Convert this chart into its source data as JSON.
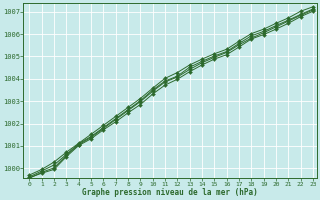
{
  "title": "",
  "xlabel": "Graphe pression niveau de la mer (hPa)",
  "ylabel": "",
  "background_color": "#c8eaea",
  "grid_color": "#ffffff",
  "line_color": "#2d6a2d",
  "xlim": [
    -0.5,
    23.3
  ],
  "ylim": [
    999.55,
    1007.4
  ],
  "yticks": [
    1000,
    1001,
    1002,
    1003,
    1004,
    1005,
    1006,
    1007
  ],
  "xticks": [
    0,
    1,
    2,
    3,
    4,
    5,
    6,
    7,
    8,
    9,
    10,
    11,
    12,
    13,
    14,
    15,
    16,
    17,
    18,
    19,
    20,
    21,
    22,
    23
  ],
  "series": [
    [
      999.62,
      999.88,
      1000.15,
      1000.62,
      1001.1,
      1001.42,
      1001.82,
      1002.22,
      1002.62,
      1003.02,
      1003.5,
      1003.9,
      1004.12,
      1004.52,
      1004.78,
      1005.02,
      1005.22,
      1005.58,
      1005.92,
      1006.12,
      1006.38,
      1006.62,
      1006.88,
      1007.12
    ],
    [
      999.58,
      999.78,
      999.95,
      1000.52,
      1001.02,
      1001.32,
      1001.72,
      1002.08,
      1002.48,
      1002.85,
      1003.32,
      1003.72,
      1003.98,
      1004.32,
      1004.62,
      1004.88,
      1005.08,
      1005.42,
      1005.78,
      1005.98,
      1006.22,
      1006.48,
      1006.78,
      1007.02
    ],
    [
      999.7,
      999.95,
      1000.28,
      1000.72,
      1001.12,
      1001.52,
      1001.92,
      1002.32,
      1002.72,
      1003.12,
      1003.58,
      1004.02,
      1004.28,
      1004.62,
      1004.88,
      1005.12,
      1005.32,
      1005.68,
      1006.02,
      1006.22,
      1006.48,
      1006.72,
      1007.02,
      1007.22
    ],
    [
      999.56,
      999.82,
      1000.02,
      1000.58,
      1001.06,
      1001.38,
      1001.78,
      1002.18,
      1002.58,
      1002.98,
      1003.44,
      1003.86,
      1004.08,
      1004.42,
      1004.72,
      1004.96,
      1005.18,
      1005.52,
      1005.82,
      1006.06,
      1006.32,
      1006.58,
      1006.84,
      1007.08
    ]
  ]
}
